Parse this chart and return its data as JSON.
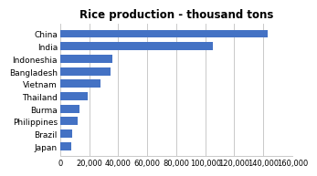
{
  "title": "Rice production - thousand tons",
  "categories": [
    "Japan",
    "Brazil",
    "Philippines",
    "Burma",
    "Thailand",
    "Vietnam",
    "Bangladesh",
    "Indoneshia",
    "India",
    "China"
  ],
  "values": [
    7500,
    8300,
    12200,
    13200,
    19000,
    27800,
    34700,
    36300,
    105000,
    143000
  ],
  "bar_color": "#4472C4",
  "xlim": [
    0,
    160000
  ],
  "xticks": [
    0,
    20000,
    40000,
    60000,
    80000,
    100000,
    120000,
    140000,
    160000
  ],
  "background_color": "#FFFFFF",
  "plot_bg_color": "#FFFFFF",
  "grid_color": "#C0C0C0",
  "title_fontsize": 8.5,
  "ylabel_fontsize": 6.5,
  "xlabel_fontsize": 6.0
}
